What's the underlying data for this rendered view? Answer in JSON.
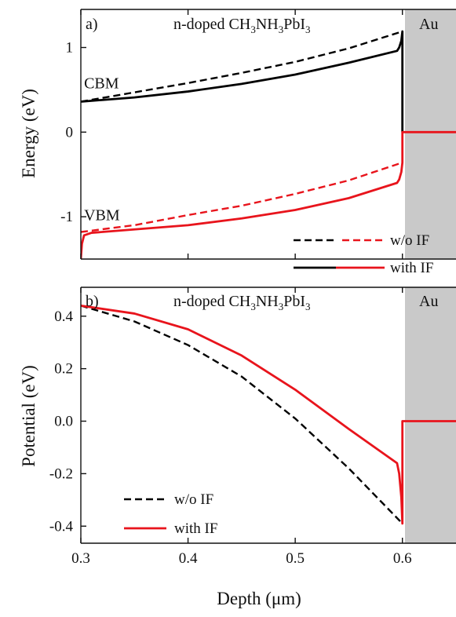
{
  "chart_data": [
    {
      "type": "line",
      "panel_label": "a)",
      "title": "n-doped CH3NH3PbI3",
      "title_parts": {
        "pre": "n-doped CH",
        "s1": "3",
        "mid": "NH",
        "s2": "3",
        "mid2": "PbI",
        "s3": "3"
      },
      "region_label": "Au",
      "ylabel": "Energy (eV)",
      "xlim": [
        0.3,
        0.65
      ],
      "ylim": [
        -1.5,
        1.45
      ],
      "yticks": [
        {
          "value": 1,
          "label": "1"
        },
        {
          "value": 0,
          "label": "0"
        },
        {
          "value": -1,
          "label": "-1"
        }
      ],
      "annotations": [
        {
          "text": "CBM",
          "x": 0.303,
          "y": 0.52
        },
        {
          "text": "VBM",
          "x": 0.303,
          "y": -1.04
        }
      ],
      "legend": {
        "placement": "bottom-right",
        "entries": [
          {
            "label": "w/o IF",
            "style": "dashed",
            "colors": [
              "#000000",
              "#e8141c"
            ]
          },
          {
            "label": "with IF",
            "style": "solid",
            "colors": [
              "#000000",
              "#e8141c"
            ]
          }
        ]
      },
      "series": [
        {
          "band": "CBM",
          "style": "dashed",
          "color": "#000000",
          "x": [
            0.3,
            0.35,
            0.4,
            0.45,
            0.5,
            0.55,
            0.6
          ],
          "y": [
            0.36,
            0.47,
            0.58,
            0.7,
            0.83,
            0.99,
            1.19
          ]
        },
        {
          "band": "CBM",
          "style": "solid",
          "color": "#000000",
          "x": [
            0.3,
            0.35,
            0.4,
            0.45,
            0.5,
            0.55,
            0.595,
            0.597,
            0.599,
            0.6,
            0.6
          ],
          "y": [
            0.36,
            0.41,
            0.48,
            0.57,
            0.68,
            0.82,
            0.96,
            1.0,
            1.08,
            1.19,
            0.0
          ]
        },
        {
          "band": "VBM",
          "style": "dashed",
          "color": "#e8141c",
          "x": [
            0.3,
            0.35,
            0.4,
            0.45,
            0.5,
            0.55,
            0.6
          ],
          "y": [
            -1.18,
            -1.1,
            -0.98,
            -0.87,
            -0.73,
            -0.57,
            -0.36
          ]
        },
        {
          "band": "VBM",
          "style": "solid",
          "color": "#e8141c",
          "x": [
            0.3,
            0.301,
            0.303,
            0.31,
            0.35,
            0.4,
            0.45,
            0.5,
            0.55,
            0.595,
            0.597,
            0.599,
            0.6,
            0.6,
            0.65
          ],
          "y": [
            -1.5,
            -1.32,
            -1.22,
            -1.19,
            -1.15,
            -1.1,
            -1.02,
            -0.92,
            -0.78,
            -0.6,
            -0.56,
            -0.47,
            -0.36,
            0.0,
            0.0
          ]
        }
      ]
    },
    {
      "type": "line",
      "panel_label": "b)",
      "title": "n-doped CH3NH3PbI3",
      "title_parts": {
        "pre": "n-doped CH",
        "s1": "3",
        "mid": "NH",
        "s2": "3",
        "mid2": "PbI",
        "s3": "3"
      },
      "region_label": "Au",
      "xlabel": "Depth (μm)",
      "ylabel": "Potential (eV)",
      "xlim": [
        0.3,
        0.65
      ],
      "ylim": [
        -0.465,
        0.51
      ],
      "xticks": [
        {
          "value": 0.3,
          "label": "0.3"
        },
        {
          "value": 0.4,
          "label": "0.4"
        },
        {
          "value": 0.5,
          "label": "0.5"
        },
        {
          "value": 0.6,
          "label": "0.6"
        }
      ],
      "yticks": [
        {
          "value": 0.4,
          "label": "0.4"
        },
        {
          "value": 0.2,
          "label": "0.2"
        },
        {
          "value": 0.0,
          "label": "0.0"
        },
        {
          "value": -0.2,
          "label": "-0.2"
        },
        {
          "value": -0.4,
          "label": "-0.4"
        }
      ],
      "legend": {
        "placement": "bottom-left",
        "entries": [
          {
            "label": "w/o IF",
            "style": "dashed",
            "colors": [
              "#000000"
            ]
          },
          {
            "label": "with IF",
            "style": "solid",
            "colors": [
              "#e8141c"
            ]
          }
        ]
      },
      "series": [
        {
          "name": "w/o IF",
          "style": "dashed",
          "color": "#000000",
          "x": [
            0.3,
            0.35,
            0.4,
            0.45,
            0.5,
            0.55,
            0.6
          ],
          "y": [
            0.44,
            0.38,
            0.29,
            0.17,
            0.01,
            -0.18,
            -0.39
          ]
        },
        {
          "name": "with IF",
          "style": "solid",
          "color": "#e8141c",
          "x": [
            0.3,
            0.35,
            0.4,
            0.45,
            0.5,
            0.55,
            0.595,
            0.597,
            0.599,
            0.6,
            0.6,
            0.65
          ],
          "y": [
            0.44,
            0.41,
            0.35,
            0.25,
            0.12,
            -0.03,
            -0.16,
            -0.2,
            -0.29,
            -0.39,
            0.0,
            0.0
          ]
        }
      ]
    }
  ]
}
